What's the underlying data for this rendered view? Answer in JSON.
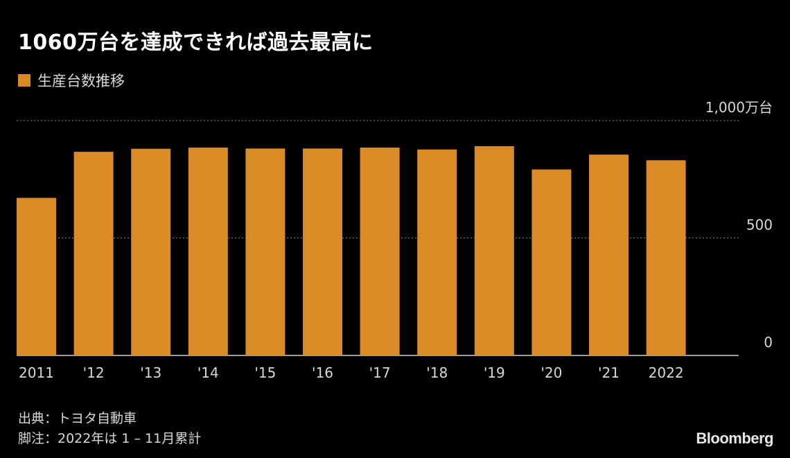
{
  "title": "1060万台を達成できれば過去最高に",
  "legend_label": "生産台数推移",
  "source_line": "出典：トヨタ自動車",
  "note_line": "脚注：2022年は 1 – 11月累計",
  "logo": "Bloomberg",
  "colors": {
    "bar": "#d98b25",
    "background": "#000000",
    "grid": "#888888",
    "text": "#d8d8d8"
  },
  "chart_data": {
    "type": "bar",
    "title": "1060万台を達成できれば過去最高に",
    "xlabel": "",
    "ylabel": "",
    "series": [
      {
        "name": "生産台数推移",
        "values": [
          671,
          867,
          880,
          885,
          881,
          881,
          885,
          877,
          891,
          792,
          855,
          831
        ]
      }
    ],
    "categories": [
      "2011",
      "'12",
      "'13",
      "'14",
      "'15",
      "'16",
      "'17",
      "'18",
      "'19",
      "'20",
      "'21",
      "2022"
    ],
    "ylim": [
      0,
      1000
    ],
    "yticks": [
      {
        "value": 0,
        "label": "0"
      },
      {
        "value": 500,
        "label": "500"
      },
      {
        "value": 1000,
        "label": "1,000万台"
      }
    ],
    "grid": true
  }
}
